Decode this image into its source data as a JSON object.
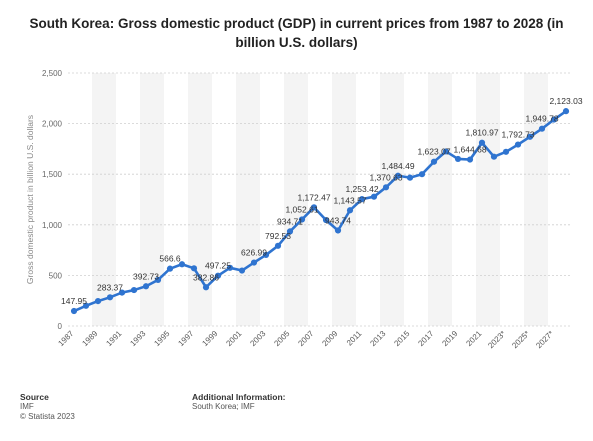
{
  "chart_data": {
    "type": "line",
    "title": "South Korea: Gross domestic product (GDP) in current prices from 1987 to 2028 (in billion U.S. dollars)",
    "xlabel": "",
    "ylabel": "Gross domestic product in billion U.S. dollars",
    "ylim": [
      0,
      2500
    ],
    "yticks": [
      0,
      500,
      1000,
      1500,
      2000,
      2500
    ],
    "ytick_labels": [
      "0",
      "500",
      "1,000",
      "1,500",
      "2,000",
      "2,500"
    ],
    "grid": "horizontal dashed",
    "accent_color": "#2f74d0",
    "categories": [
      "1987",
      "1988",
      "1989",
      "1990",
      "1991",
      "1992",
      "1993",
      "1994",
      "1995",
      "1996",
      "1997",
      "1998",
      "1999",
      "2000",
      "2001",
      "2002",
      "2003",
      "2004",
      "2005",
      "2006",
      "2007",
      "2008",
      "2009",
      "2010",
      "2011",
      "2012",
      "2013",
      "2014",
      "2015",
      "2016",
      "2017",
      "2018",
      "2019",
      "2020",
      "2021",
      "2022",
      "2023*",
      "2024*",
      "2025*",
      "2026*",
      "2027*",
      "2028*"
    ],
    "xtick_labels": [
      "1987",
      "1989",
      "1991",
      "1993",
      "1995",
      "1997",
      "1999",
      "2001",
      "2003",
      "2005",
      "2007",
      "2009",
      "2011",
      "2013",
      "2015",
      "2017",
      "2019",
      "2021",
      "2023*",
      "2025*",
      "2027*"
    ],
    "values": [
      147.95,
      200,
      246,
      283.37,
      330,
      355,
      392.73,
      455,
      566.6,
      610,
      570,
      382.86,
      497.25,
      575,
      548,
      626.99,
      702,
      792.53,
      934.71,
      1052.61,
      1172.47,
      1047,
      943.74,
      1143.57,
      1253.42,
      1278,
      1370.63,
      1484.49,
      1466,
      1500,
      1623.07,
      1725,
      1651,
      1644.68,
      1810.97,
      1673,
      1721,
      1792.73,
      1870,
      1949.78,
      2040,
      2123.03
    ],
    "data_labels": [
      {
        "index": 0,
        "text": "147.95"
      },
      {
        "index": 3,
        "text": "283.37"
      },
      {
        "index": 6,
        "text": "392.73"
      },
      {
        "index": 8,
        "text": "566.6"
      },
      {
        "index": 11,
        "text": "382.86"
      },
      {
        "index": 12,
        "text": "497.25"
      },
      {
        "index": 15,
        "text": "626.99"
      },
      {
        "index": 17,
        "text": "792.53"
      },
      {
        "index": 18,
        "text": "934.71"
      },
      {
        "index": 19,
        "text": "1,052.61"
      },
      {
        "index": 20,
        "text": "1,172.47"
      },
      {
        "index": 22,
        "text": "943.74"
      },
      {
        "index": 23,
        "text": "1,143.57"
      },
      {
        "index": 24,
        "text": "1,253.42"
      },
      {
        "index": 26,
        "text": "1,370.63"
      },
      {
        "index": 27,
        "text": "1,484.49"
      },
      {
        "index": 30,
        "text": "1,623.07"
      },
      {
        "index": 33,
        "text": "1,644.68"
      },
      {
        "index": 34,
        "text": "1,810.97"
      },
      {
        "index": 37,
        "text": "1,792.73"
      },
      {
        "index": 39,
        "text": "1,949.78"
      },
      {
        "index": 41,
        "text": "2,123.03"
      }
    ]
  },
  "footer": {
    "source_heading": "Source",
    "source_line1": "IMF",
    "source_line2": "© Statista 2023",
    "info_heading": "Additional Information:",
    "info_line1": "South Korea; IMF"
  }
}
